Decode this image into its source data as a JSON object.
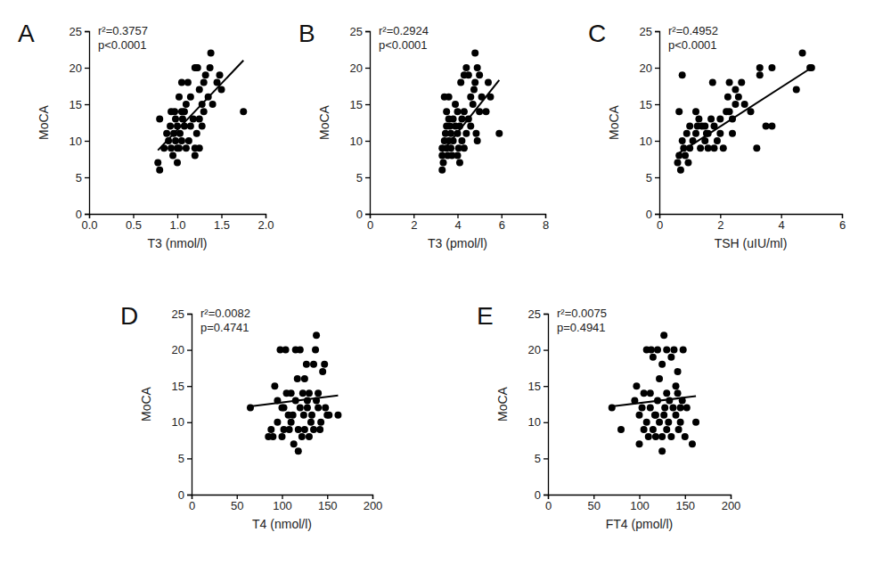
{
  "chart_data": [
    {
      "type": "scatter",
      "title": "A",
      "annotations": [
        "r²=0.3757",
        "p<0.0001"
      ],
      "x_label": "T3 (nmol/l)",
      "y_label": "MoCA",
      "xlim": [
        0,
        2
      ],
      "xticks": [
        {
          "value": 0,
          "label": "0.0"
        },
        0.5,
        {
          "value": 1,
          "label": "1.0"
        },
        1.5,
        {
          "value": 2,
          "label": "2.0"
        }
      ],
      "ylim": [
        0,
        25
      ],
      "yticks": [
        0,
        5,
        10,
        15,
        20,
        25
      ],
      "color": "#000000",
      "marker": "circle",
      "x": [
        0.78,
        0.8,
        0.8,
        0.85,
        0.88,
        0.9,
        0.92,
        0.93,
        0.93,
        0.95,
        0.96,
        0.97,
        0.98,
        0.98,
        1.0,
        1.0,
        1.0,
        1.02,
        1.02,
        1.03,
        1.05,
        1.05,
        1.06,
        1.08,
        1.08,
        1.1,
        1.1,
        1.12,
        1.13,
        1.15,
        1.15,
        1.18,
        1.2,
        1.2,
        1.2,
        1.22,
        1.23,
        1.25,
        1.25,
        1.25,
        1.28,
        1.28,
        1.3,
        1.3,
        1.32,
        1.35,
        1.37,
        1.38,
        1.4,
        1.45,
        1.48,
        1.5,
        1.75,
        1.22,
        1.05
      ],
      "values": [
        7,
        6,
        13,
        9,
        11,
        10,
        12,
        9,
        14,
        8,
        11,
        14,
        10,
        13,
        7,
        9,
        12,
        16,
        9,
        11,
        18,
        10,
        13,
        12,
        14,
        9,
        15,
        18,
        10,
        12,
        16,
        13,
        20,
        9,
        8,
        11,
        20,
        13,
        17,
        9,
        15,
        12,
        18,
        14,
        19,
        16,
        20,
        22,
        15,
        18,
        19,
        17,
        14,
        20,
        14
      ],
      "fit": {
        "x": [
          0.78,
          1.75
        ],
        "values": [
          8.7,
          21
        ]
      }
    },
    {
      "type": "scatter",
      "title": "B",
      "annotations": [
        "r²=0.2924",
        "p<0.0001"
      ],
      "x_label": "T3 (pmol/l)",
      "y_label": "MoCA",
      "xlim": [
        0,
        8
      ],
      "xticks": [
        0,
        2,
        4,
        6,
        8
      ],
      "ylim": [
        0,
        25
      ],
      "yticks": [
        0,
        5,
        10,
        15,
        20,
        25
      ],
      "color": "#000000",
      "marker": "circle",
      "x": [
        3.3,
        3.3,
        3.3,
        3.35,
        3.4,
        3.4,
        3.45,
        3.5,
        3.5,
        3.5,
        3.55,
        3.6,
        3.6,
        3.65,
        3.7,
        3.7,
        3.75,
        3.8,
        3.8,
        3.9,
        3.9,
        4.0,
        4.0,
        4.0,
        4.05,
        4.1,
        4.1,
        4.15,
        4.2,
        4.2,
        4.3,
        4.3,
        4.4,
        4.4,
        4.5,
        4.5,
        4.6,
        4.6,
        4.7,
        4.75,
        4.8,
        4.8,
        4.85,
        4.9,
        5.0,
        5.0,
        5.1,
        5.3,
        5.4,
        5.5,
        5.9,
        4.9,
        4.3,
        3.6
      ],
      "values": [
        6,
        8,
        9,
        7,
        16,
        10,
        11,
        9,
        12,
        14,
        8,
        10,
        13,
        12,
        9,
        11,
        8,
        13,
        10,
        12,
        15,
        8,
        11,
        14,
        9,
        12,
        7,
        18,
        13,
        10,
        9,
        14,
        11,
        20,
        13,
        19,
        16,
        12,
        15,
        17,
        22,
        18,
        11,
        20,
        19,
        14,
        16,
        14,
        18,
        16,
        11,
        10,
        19,
        16
      ],
      "fit": {
        "x": [
          3.3,
          5.9
        ],
        "values": [
          8.5,
          18.3
        ]
      }
    },
    {
      "type": "scatter",
      "title": "C",
      "annotations": [
        "r²=0.4952",
        "p<0.0001"
      ],
      "x_label": "TSH (uIU/ml)",
      "y_label": "MoCA",
      "xlim": [
        0,
        6
      ],
      "xticks": [
        0,
        2,
        4,
        6
      ],
      "ylim": [
        0,
        25
      ],
      "yticks": [
        0,
        5,
        10,
        15,
        20,
        25
      ],
      "color": "#000000",
      "marker": "circle",
      "x": [
        0.6,
        0.65,
        0.65,
        0.7,
        0.75,
        0.75,
        0.8,
        0.85,
        0.9,
        0.95,
        1.0,
        1.0,
        1.1,
        1.2,
        1.2,
        1.25,
        1.3,
        1.35,
        1.4,
        1.5,
        1.5,
        1.6,
        1.6,
        1.7,
        1.75,
        1.8,
        1.8,
        1.9,
        2.0,
        2.0,
        2.1,
        2.2,
        2.25,
        2.3,
        2.3,
        2.4,
        2.4,
        2.5,
        2.5,
        2.6,
        2.7,
        2.8,
        3.0,
        3.2,
        3.3,
        3.3,
        3.5,
        3.7,
        3.7,
        4.5,
        4.7,
        5.0,
        4.95,
        1.55
      ],
      "values": [
        7,
        14,
        8,
        6,
        19,
        10,
        9,
        8,
        11,
        7,
        9,
        12,
        10,
        14,
        11,
        12,
        13,
        9,
        12,
        10,
        12,
        11,
        9,
        13,
        18,
        12,
        9,
        10,
        11,
        13,
        9,
        14,
        16,
        18,
        14,
        11,
        13,
        15,
        17,
        16,
        18,
        15,
        14,
        9,
        19,
        20,
        12,
        20,
        12,
        17,
        22,
        20,
        20,
        11
      ],
      "fit": {
        "x": [
          0.6,
          5.0
        ],
        "values": [
          8.2,
          20
        ]
      }
    },
    {
      "type": "scatter",
      "title": "D",
      "annotations": [
        "r²=0.0082",
        "p=0.4741"
      ],
      "x_label": "T4 (nmol/l)",
      "y_label": "MoCA",
      "xlim": [
        0,
        200
      ],
      "xticks": [
        0,
        50,
        100,
        150,
        200
      ],
      "ylim": [
        0,
        25
      ],
      "yticks": [
        0,
        5,
        10,
        15,
        20,
        25
      ],
      "color": "#000000",
      "marker": "circle",
      "x": [
        65,
        85,
        88,
        90,
        92,
        95,
        95,
        98,
        100,
        100,
        102,
        104,
        105,
        107,
        108,
        110,
        110,
        112,
        113,
        115,
        115,
        117,
        118,
        118,
        120,
        120,
        122,
        123,
        124,
        125,
        125,
        127,
        128,
        128,
        130,
        130,
        132,
        133,
        135,
        135,
        137,
        138,
        138,
        140,
        140,
        142,
        143,
        145,
        147,
        148,
        150,
        152,
        162,
        102
      ],
      "values": [
        12,
        8,
        9,
        8,
        15,
        10,
        13,
        20,
        8,
        12,
        9,
        20,
        14,
        11,
        9,
        14,
        10,
        11,
        7,
        20,
        13,
        16,
        6,
        9,
        12,
        20,
        8,
        14,
        11,
        9,
        16,
        18,
        13,
        12,
        14,
        8,
        10,
        11,
        18,
        9,
        20,
        13,
        22,
        12,
        14,
        9,
        10,
        17,
        18,
        12,
        11,
        11,
        11,
        12
      ],
      "fit": {
        "x": [
          65,
          162
        ],
        "values": [
          12.2,
          13.7
        ]
      }
    },
    {
      "type": "scatter",
      "title": "E",
      "annotations": [
        "r²=0.0075",
        "p=0.4941"
      ],
      "x_label": "FT4 (pmol/l)",
      "y_label": "MoCA",
      "xlim": [
        0,
        200
      ],
      "xticks": [
        0,
        50,
        100,
        150,
        200
      ],
      "ylim": [
        0,
        25
      ],
      "yticks": [
        0,
        5,
        10,
        15,
        20,
        25
      ],
      "color": "#000000",
      "marker": "circle",
      "x": [
        70,
        80,
        95,
        97,
        100,
        100,
        103,
        105,
        108,
        108,
        110,
        112,
        112,
        113,
        115,
        115,
        117,
        118,
        120,
        120,
        122,
        122,
        125,
        125,
        125,
        127,
        127,
        128,
        130,
        130,
        130,
        132,
        133,
        135,
        135,
        137,
        138,
        140,
        140,
        142,
        142,
        143,
        145,
        145,
        147,
        148,
        150,
        152,
        158,
        162,
        105,
        118
      ],
      "values": [
        12,
        9,
        13,
        15,
        7,
        11,
        12,
        9,
        20,
        10,
        8,
        14,
        12,
        20,
        9,
        19,
        11,
        8,
        20,
        13,
        16,
        10,
        8,
        6,
        18,
        11,
        22,
        12,
        20,
        9,
        14,
        10,
        13,
        8,
        19,
        12,
        20,
        15,
        11,
        17,
        14,
        9,
        10,
        12,
        13,
        20,
        8,
        12,
        7,
        10,
        14,
        11
      ],
      "fit": {
        "x": [
          70,
          162
        ],
        "values": [
          12.2,
          13.6
        ]
      }
    }
  ]
}
